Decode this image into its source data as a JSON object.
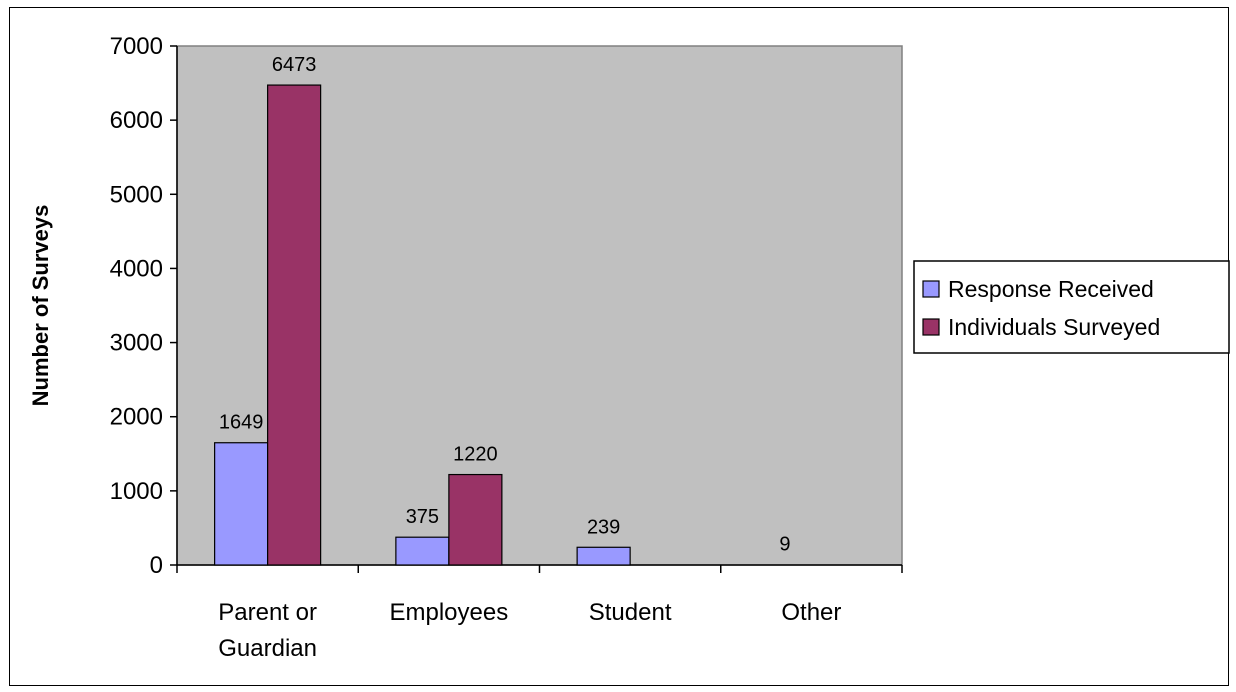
{
  "chart_data": {
    "type": "bar",
    "categories": [
      "Parent or Guardian",
      "Employees",
      "Student",
      "Other"
    ],
    "series": [
      {
        "name": "Response Received",
        "values": [
          1649,
          375,
          239,
          9
        ],
        "color": "#9999ff"
      },
      {
        "name": "Individuals Surveyed",
        "values": [
          6473,
          1220,
          null,
          null
        ],
        "color": "#993366"
      }
    ],
    "ylabel": "Number of Surveys",
    "xlabel": "",
    "ylim": [
      0,
      7000
    ],
    "yticks": [
      0,
      1000,
      2000,
      3000,
      4000,
      5000,
      6000,
      7000
    ],
    "plot_background": "#c0c0c0",
    "grid": false,
    "legend_position": "right"
  }
}
